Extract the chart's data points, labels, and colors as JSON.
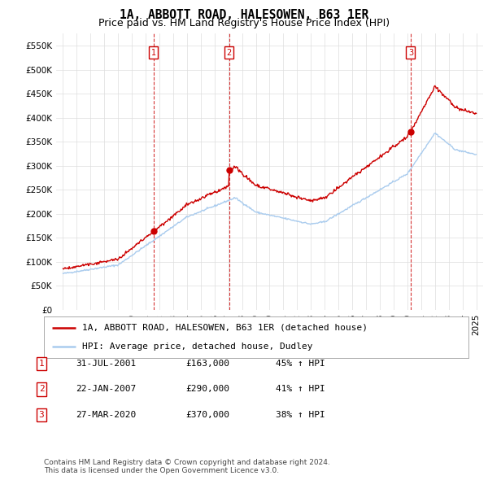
{
  "title": "1A, ABBOTT ROAD, HALESOWEN, B63 1ER",
  "subtitle": "Price paid vs. HM Land Registry's House Price Index (HPI)",
  "ylim": [
    0,
    575000
  ],
  "yticks": [
    0,
    50000,
    100000,
    150000,
    200000,
    250000,
    300000,
    350000,
    400000,
    450000,
    500000,
    550000
  ],
  "ytick_labels": [
    "£0",
    "£50K",
    "£100K",
    "£150K",
    "£200K",
    "£250K",
    "£300K",
    "£350K",
    "£400K",
    "£450K",
    "£500K",
    "£550K"
  ],
  "hpi_color": "#aaccee",
  "sale_color": "#cc0000",
  "dashed_color": "#cc0000",
  "background_color": "#ffffff",
  "grid_color": "#dddddd",
  "legend_label_sale": "1A, ABBOTT ROAD, HALESOWEN, B63 1ER (detached house)",
  "legend_label_hpi": "HPI: Average price, detached house, Dudley",
  "sales": [
    {
      "date_num": 2001.58,
      "price": 163000,
      "label": "1"
    },
    {
      "date_num": 2007.06,
      "price": 290000,
      "label": "2"
    },
    {
      "date_num": 2020.24,
      "price": 370000,
      "label": "3"
    }
  ],
  "table_rows": [
    {
      "num": "1",
      "date": "31-JUL-2001",
      "price": "£163,000",
      "hpi": "45% ↑ HPI"
    },
    {
      "num": "2",
      "date": "22-JAN-2007",
      "price": "£290,000",
      "hpi": "41% ↑ HPI"
    },
    {
      "num": "3",
      "date": "27-MAR-2020",
      "price": "£370,000",
      "hpi": "38% ↑ HPI"
    }
  ],
  "footer": "Contains HM Land Registry data © Crown copyright and database right 2024.\nThis data is licensed under the Open Government Licence v3.0.",
  "title_fontsize": 10.5,
  "subtitle_fontsize": 9,
  "tick_fontsize": 7.5,
  "legend_fontsize": 8,
  "table_fontsize": 8,
  "footer_fontsize": 6.5
}
